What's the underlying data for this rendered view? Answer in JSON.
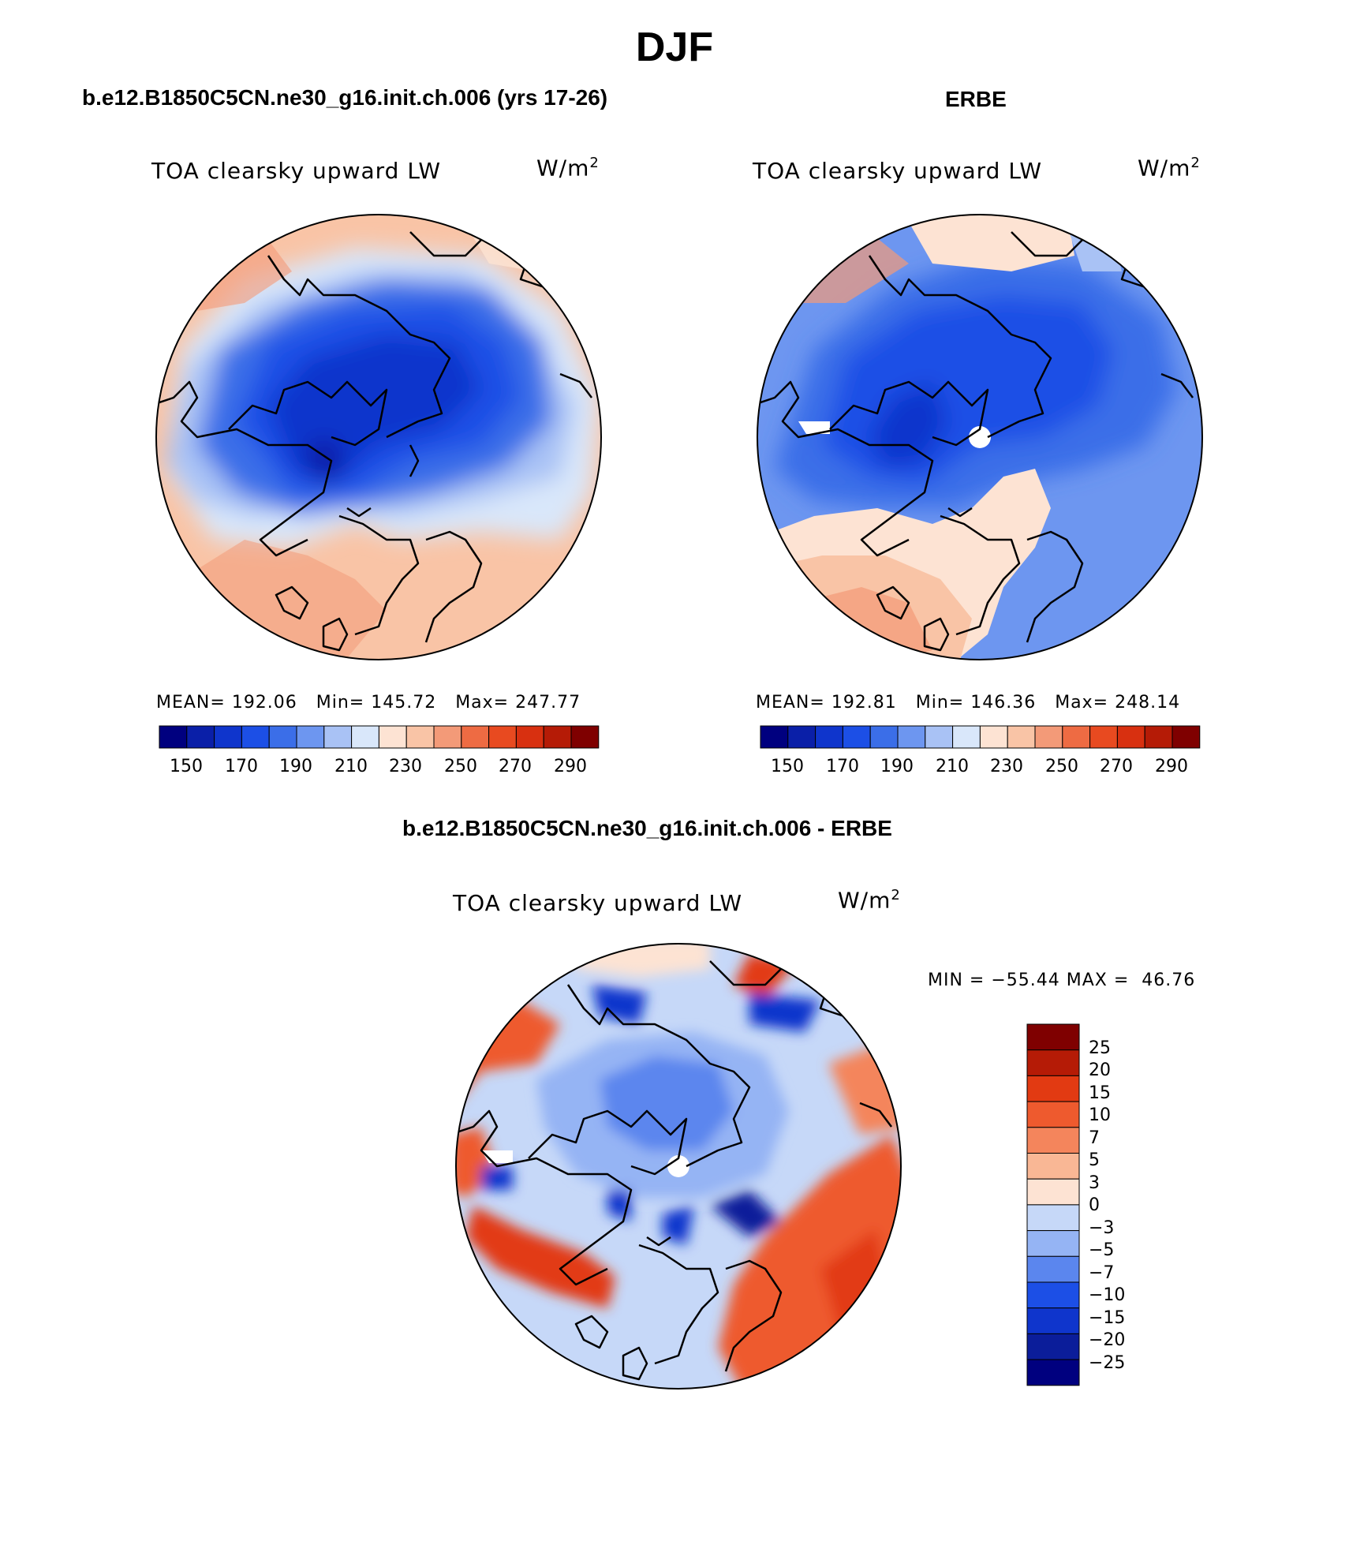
{
  "figure": {
    "title": "DJF"
  },
  "panels": {
    "model": {
      "case_title": "b.e12.B1850C5CN.ne30_g16.init.ch.006 (yrs 17-26)",
      "field_label": "TOA clearsky upward LW",
      "units": "W/m",
      "units_exp": "2",
      "stats": "MEAN= 192.06   Min= 145.72   Max= 247.77"
    },
    "obs": {
      "case_title": "ERBE",
      "field_label": "TOA clearsky upward LW",
      "units": "W/m",
      "units_exp": "2",
      "stats": "MEAN= 192.81   Min= 146.36   Max= 248.14"
    },
    "diff": {
      "case_title": "b.e12.B1850C5CN.ne30_g16.init.ch.006 - ERBE",
      "field_label": "TOA clearsky upward LW",
      "units": "W/m",
      "units_exp": "2",
      "stats": "MIN = −55.44 MAX =  46.76"
    }
  },
  "colors": {
    "abs_scale": [
      "#00007f",
      "#0a1fa8",
      "#0f35cc",
      "#1c4fe6",
      "#3b6ee8",
      "#6d96f0",
      "#a9c2f5",
      "#d9e7fa",
      "#fde3d3",
      "#f9c4a6",
      "#f39a78",
      "#ee6b43",
      "#e84a20",
      "#d83010",
      "#b51b06",
      "#7f0000"
    ],
    "diff_scale": [
      "#00007f",
      "#0b1d9a",
      "#0f35cc",
      "#1c4fe6",
      "#5b86ee",
      "#95b4f4",
      "#c6d8f8",
      "#fde3d3",
      "#f9b795",
      "#f4855c",
      "#ee5a2e",
      "#e23a12",
      "#b51b06",
      "#7f0000"
    ]
  },
  "chart_data": [
    {
      "type": "heatmap",
      "title": "TOA clearsky upward LW",
      "subtitle": "b.e12.B1850C5CN.ne30_g16.init.ch.006 (yrs 17-26)",
      "units": "W/m2",
      "projection": "north-polar-stereographic",
      "mean": 192.06,
      "min": 145.72,
      "max": 247.77,
      "contour_levels": [
        150,
        160,
        170,
        180,
        190,
        200,
        210,
        220,
        230,
        240,
        250,
        260,
        270,
        280,
        290
      ],
      "colorbar_tick_labels": [
        "150",
        "170",
        "190",
        "210",
        "230",
        "250",
        "270",
        "290"
      ]
    },
    {
      "type": "heatmap",
      "title": "TOA clearsky upward LW",
      "subtitle": "ERBE",
      "units": "W/m2",
      "projection": "north-polar-stereographic",
      "mean": 192.81,
      "min": 146.36,
      "max": 248.14,
      "contour_levels": [
        150,
        160,
        170,
        180,
        190,
        200,
        210,
        220,
        230,
        240,
        250,
        260,
        270,
        280,
        290
      ],
      "colorbar_tick_labels": [
        "150",
        "170",
        "190",
        "210",
        "230",
        "250",
        "270",
        "290"
      ]
    },
    {
      "type": "heatmap",
      "title": "TOA clearsky upward LW",
      "subtitle": "b.e12.B1850C5CN.ne30_g16.init.ch.006 - ERBE",
      "units": "W/m2",
      "projection": "north-polar-stereographic",
      "min": -55.44,
      "max": 46.76,
      "contour_levels": [
        -25,
        -20,
        -15,
        -10,
        -7,
        -5,
        -3,
        0,
        3,
        5,
        7,
        10,
        15,
        20,
        25
      ],
      "colorbar_tick_labels": [
        "25",
        "20",
        "15",
        "10",
        "7",
        "5",
        "3",
        "0",
        "−3",
        "−5",
        "−7",
        "−10",
        "−15",
        "−20",
        "−25"
      ]
    }
  ]
}
